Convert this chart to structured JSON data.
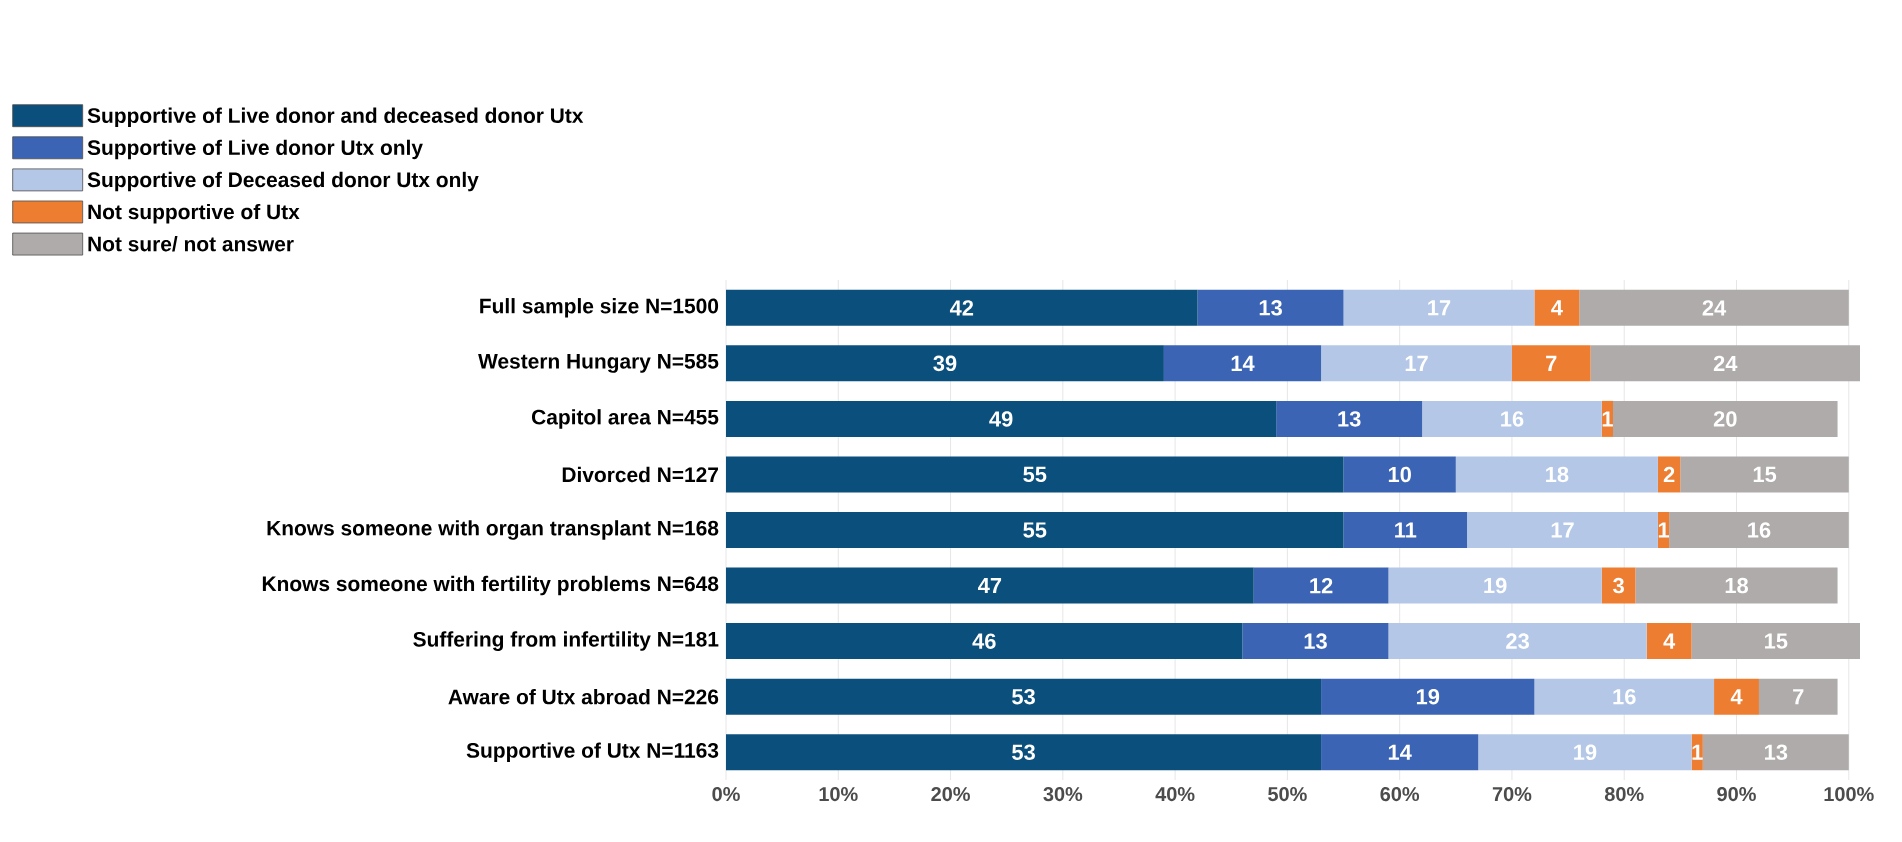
{
  "chart_data": {
    "type": "bar",
    "orientation": "horizontal",
    "stacked": true,
    "data_labels": true,
    "grid": "x",
    "legend": "top left",
    "categories": [
      "Full sample size N=1500",
      "Western Hungary N=585",
      "Capitol area N=455",
      "Divorced N=127",
      "Knows someone with organ transplant N=168",
      "Knows someone with fertility problems N=648",
      "Suffering from infertility N=181",
      "Aware of Utx abroad N=226",
      "Supportive of Utx N=1163"
    ],
    "series": [
      {
        "name": "Supportive of Live donor and deceased donor Utx",
        "color": "#0b4f7c",
        "values": [
          42,
          39,
          49,
          55,
          55,
          47,
          46,
          53,
          53
        ]
      },
      {
        "name": "Supportive of Live donor Utx only",
        "color": "#3c64b4",
        "values": [
          13,
          14,
          13,
          10,
          11,
          12,
          13,
          19,
          14
        ]
      },
      {
        "name": "Supportive of Deceased donor Utx only",
        "color": "#b4c7e7",
        "values": [
          17,
          17,
          16,
          18,
          17,
          19,
          23,
          16,
          19
        ]
      },
      {
        "name": "Not supportive of Utx",
        "color": "#ed7d31",
        "values": [
          4,
          7,
          1,
          2,
          1,
          3,
          4,
          4,
          1
        ]
      },
      {
        "name": "Not sure/ not answer",
        "color": "#afabab",
        "values": [
          24,
          24,
          20,
          15,
          16,
          18,
          15,
          7,
          13
        ]
      }
    ],
    "xlim": [
      0,
      101
    ],
    "xticks": [
      {
        "value": 0,
        "label": "0%"
      },
      {
        "value": 10,
        "label": "10%"
      },
      {
        "value": 20,
        "label": "20%"
      },
      {
        "value": 30,
        "label": "30%"
      },
      {
        "value": 40,
        "label": "40%"
      },
      {
        "value": 50,
        "label": "50%"
      },
      {
        "value": 60,
        "label": "60%"
      },
      {
        "value": 70,
        "label": "70%"
      },
      {
        "value": 80,
        "label": "80%"
      },
      {
        "value": 90,
        "label": "90%"
      },
      {
        "value": 100,
        "label": "100%"
      }
    ]
  }
}
